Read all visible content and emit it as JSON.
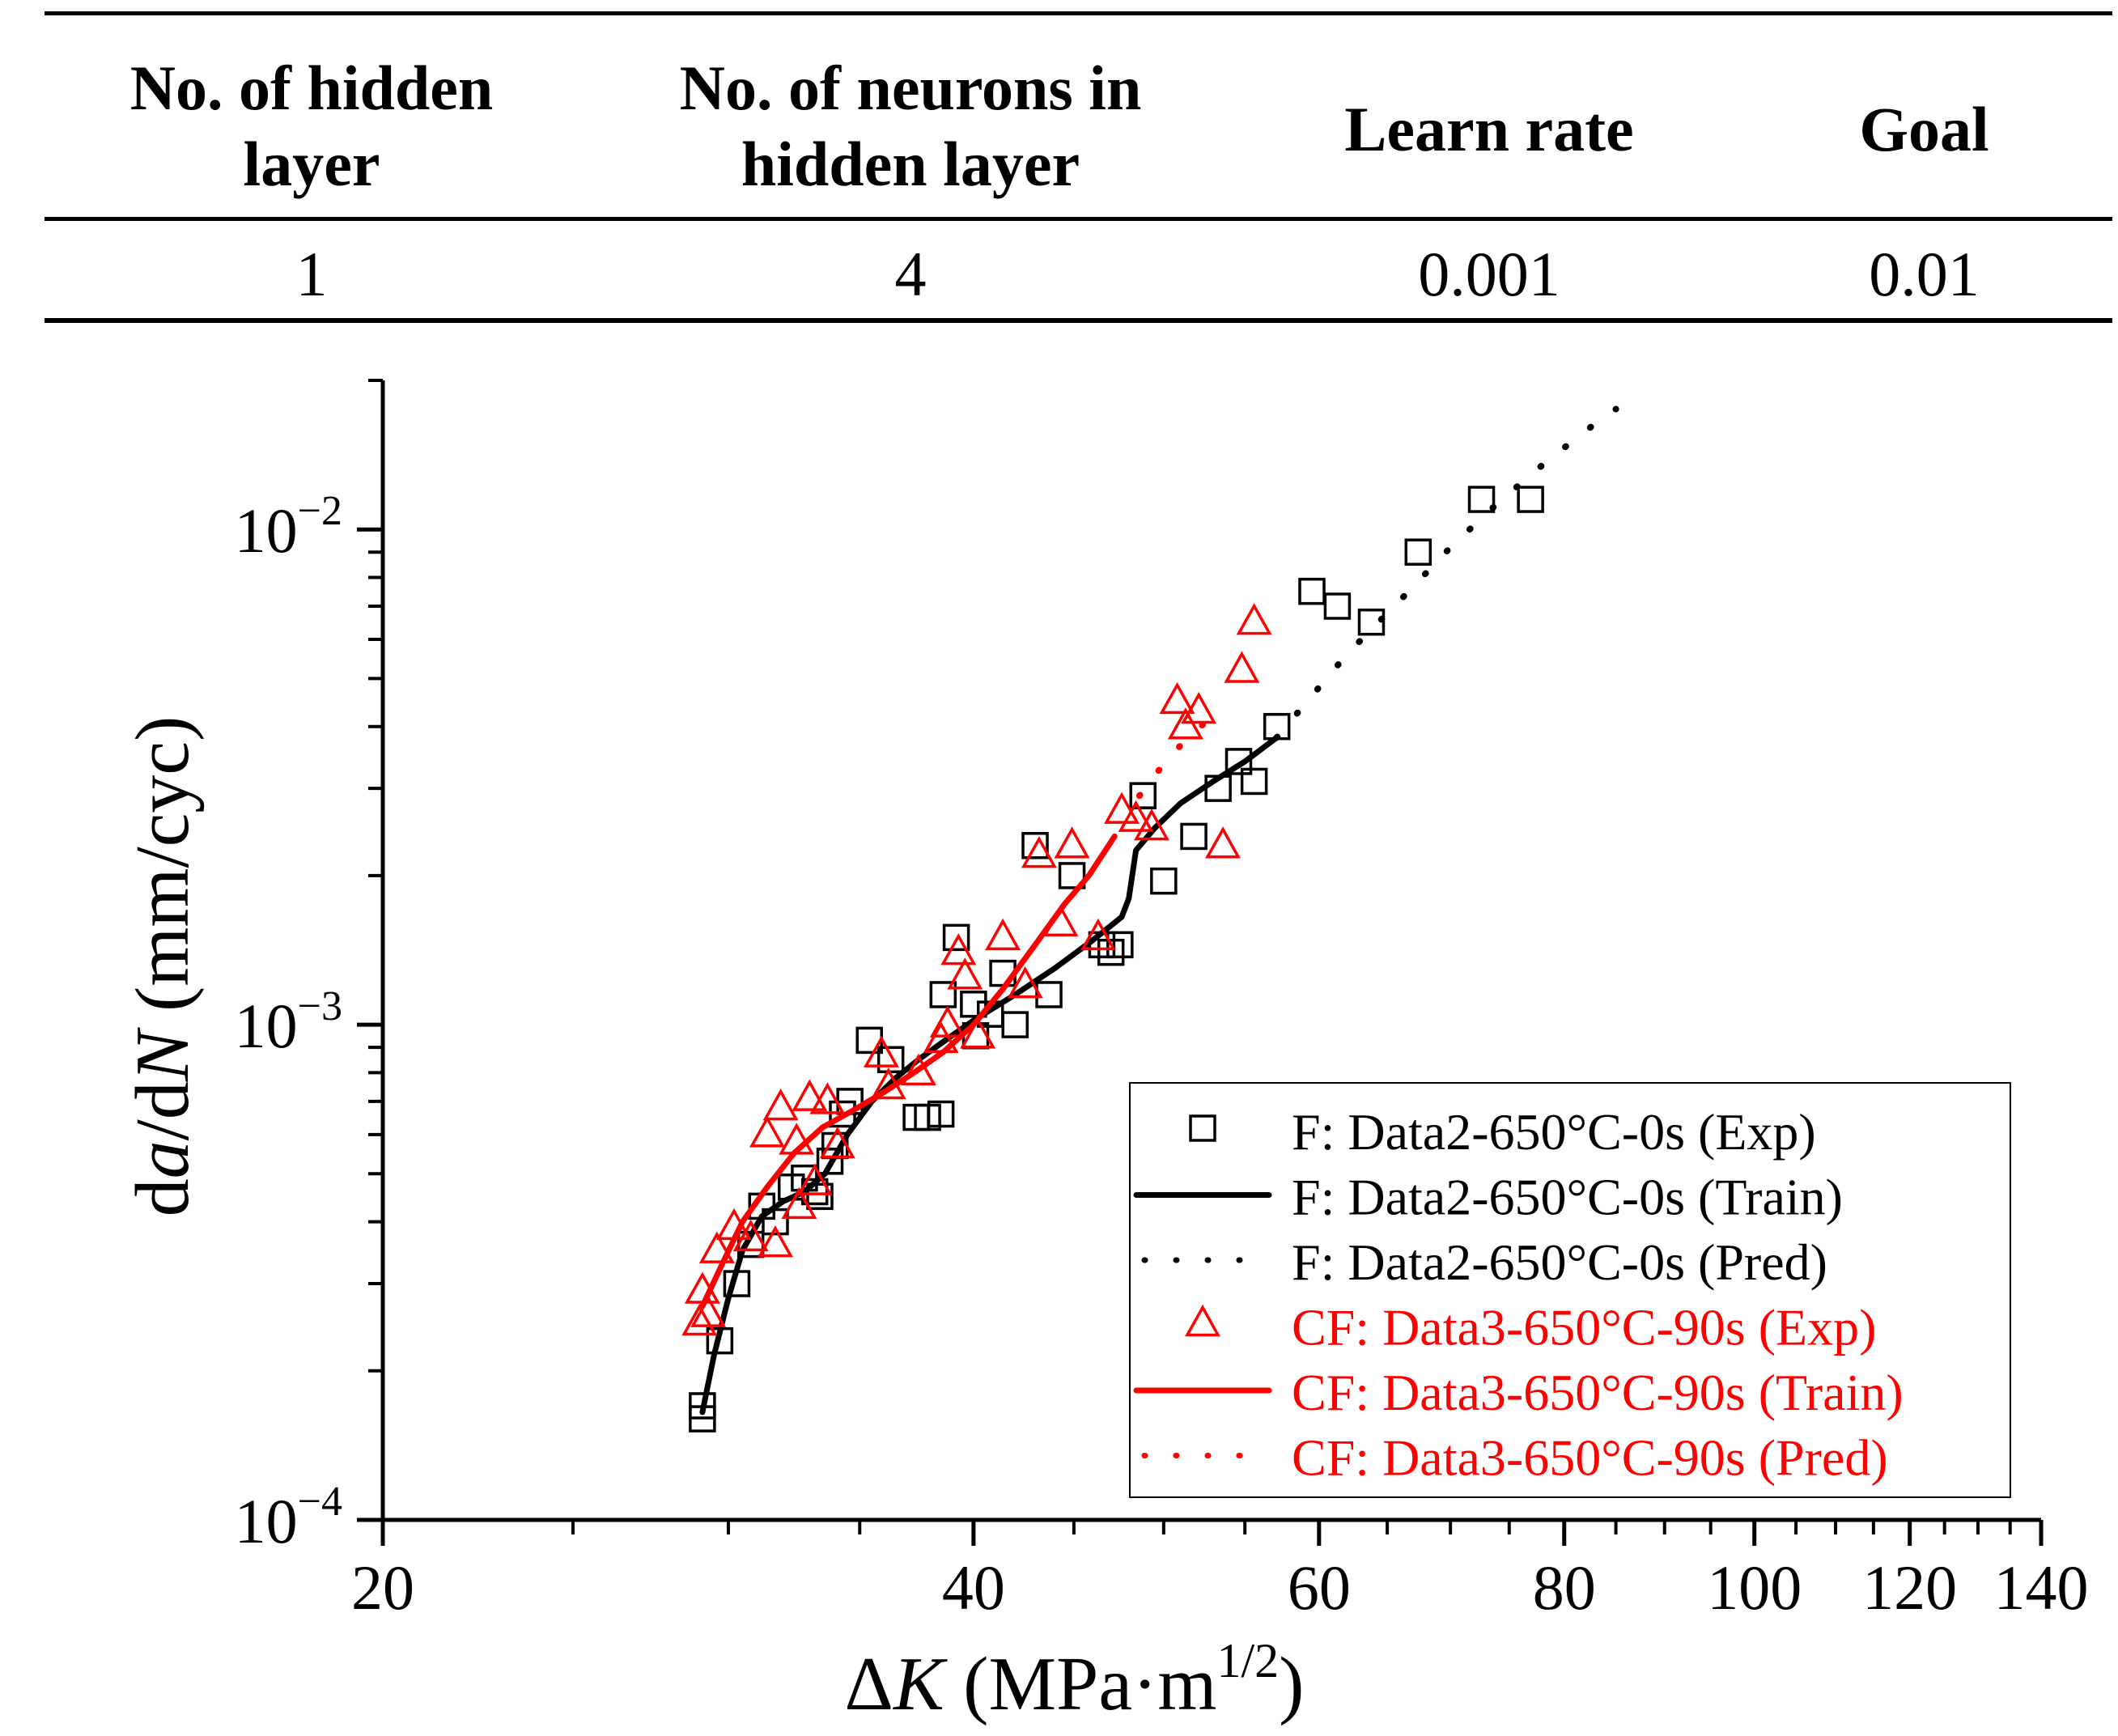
{
  "table": {
    "headers": [
      "No. of hidden\nlayer",
      "No. of neurons in\nhidden layer",
      "Learn rate",
      "Goal"
    ],
    "row": [
      "1",
      "4",
      "0.001",
      "0.01"
    ]
  },
  "colors": {
    "black_series": "#000000",
    "red_series": "#ff0000",
    "axis": "#000000"
  },
  "chart_data": {
    "type": "scatter",
    "xscale": "log",
    "yscale": "log",
    "xlim": [
      20,
      140
    ],
    "ylim": [
      0.0001,
      0.02
    ],
    "xticks": [
      20,
      40,
      60,
      80,
      100,
      120,
      140
    ],
    "xtick_labels": [
      "20",
      "40",
      "60",
      "80",
      "100",
      "120",
      "140"
    ],
    "yticks": [
      0.0001,
      0.001,
      0.01
    ],
    "ytick_base": [
      "10",
      "10",
      "10"
    ],
    "ytick_exp": [
      "−4",
      "−3",
      "−2"
    ],
    "xlabel": {
      "prefix": "Δ",
      "var": "K",
      "unit": " (MPa·m",
      "sup": "1/2",
      "close": ")"
    },
    "ylabel": {
      "d1": "d",
      "var1": "a",
      "mid": "/d",
      "var2": "N",
      "unit": " (mm/cyc)"
    },
    "legend_position": "bottom-right",
    "series": [
      {
        "name": "F: Data2-650°C-0s (Exp)",
        "style": "square",
        "color": "#000000",
        "points": [
          [
            29.1,
            0.00016
          ],
          [
            29.1,
            0.00017
          ],
          [
            29.7,
            0.00023
          ],
          [
            30.3,
            0.0003
          ],
          [
            30.8,
            0.00036
          ],
          [
            31.2,
            0.00043
          ],
          [
            31.7,
            0.0004
          ],
          [
            32.3,
            0.00047
          ],
          [
            32.8,
            0.00049
          ],
          [
            33.2,
            0.00046
          ],
          [
            33.4,
            0.00045
          ],
          [
            33.8,
            0.00053
          ],
          [
            34.0,
            0.00057
          ],
          [
            34.3,
            0.00066
          ],
          [
            34.6,
            0.0007
          ],
          [
            35.4,
            0.00093
          ],
          [
            36.3,
            0.00085
          ],
          [
            37.4,
            0.00065
          ],
          [
            37.9,
            0.00065
          ],
          [
            38.5,
            0.00066
          ],
          [
            38.6,
            0.00115
          ],
          [
            39.2,
            0.0015
          ],
          [
            40.0,
            0.0011
          ],
          [
            40.1,
            0.00095
          ],
          [
            40.8,
            0.00105
          ],
          [
            41.4,
            0.00127
          ],
          [
            42.0,
            0.001
          ],
          [
            43.0,
            0.0023
          ],
          [
            43.7,
            0.00115
          ],
          [
            44.9,
            0.002
          ],
          [
            46.5,
            0.00145
          ],
          [
            47.0,
            0.0014
          ],
          [
            47.5,
            0.00145
          ],
          [
            48.8,
            0.0029
          ],
          [
            50.0,
            0.00195
          ],
          [
            51.8,
            0.0024
          ],
          [
            53.3,
            0.003
          ],
          [
            54.6,
            0.0034
          ],
          [
            55.6,
            0.0031
          ],
          [
            57.1,
            0.004
          ],
          [
            59.5,
            0.0075
          ],
          [
            61.3,
            0.007
          ],
          [
            63.8,
            0.0065
          ],
          [
            67.4,
            0.009
          ],
          [
            72.6,
            0.0115
          ],
          [
            76.9,
            0.0115
          ]
        ]
      },
      {
        "name": "F: Data2-650°C-0s (Train)",
        "style": "solid",
        "color": "#000000",
        "points": [
          [
            29.1,
            0.000165
          ],
          [
            29.5,
            0.000215
          ],
          [
            30.0,
            0.00028
          ],
          [
            30.5,
            0.00035
          ],
          [
            31.2,
            0.00041
          ],
          [
            32.0,
            0.00044
          ],
          [
            32.8,
            0.00046
          ],
          [
            33.6,
            0.0005
          ],
          [
            34.5,
            0.0006
          ],
          [
            35.5,
            0.0007
          ],
          [
            36.5,
            0.00078
          ],
          [
            37.5,
            0.00085
          ],
          [
            38.7,
            0.00093
          ],
          [
            40.0,
            0.00102
          ],
          [
            42.0,
            0.00115
          ],
          [
            44.0,
            0.0013
          ],
          [
            46.0,
            0.00148
          ],
          [
            47.6,
            0.00165
          ],
          [
            48.0,
            0.0018
          ],
          [
            48.4,
            0.00225
          ],
          [
            49.5,
            0.0025
          ],
          [
            51.0,
            0.0028
          ],
          [
            53.0,
            0.0031
          ],
          [
            55.0,
            0.0034
          ],
          [
            57.1,
            0.0038
          ]
        ]
      },
      {
        "name": "F: Data2-650°C-0s (Pred)",
        "style": "dotted",
        "color": "#000000",
        "points": [
          [
            57.1,
            0.0038
          ],
          [
            62.0,
            0.0056
          ],
          [
            66.0,
            0.0072
          ],
          [
            70.0,
            0.0092
          ],
          [
            74.0,
            0.0113
          ],
          [
            78.0,
            0.0135
          ],
          [
            82.0,
            0.0158
          ],
          [
            85.0,
            0.0175
          ]
        ]
      },
      {
        "name": "CF: Data3-650°C-90s (Exp)",
        "style": "triangle",
        "color": "#ff0000",
        "points": [
          [
            29.0,
            0.00025
          ],
          [
            29.1,
            0.00029
          ],
          [
            29.3,
            0.00026
          ],
          [
            29.6,
            0.00035
          ],
          [
            30.2,
            0.00039
          ],
          [
            30.8,
            0.00037
          ],
          [
            31.7,
            0.00036
          ],
          [
            31.4,
            0.0006
          ],
          [
            31.9,
            0.00068
          ],
          [
            32.5,
            0.00058
          ],
          [
            33.0,
            0.00071
          ],
          [
            33.7,
            0.0007
          ],
          [
            34.1,
            0.00057
          ],
          [
            32.6,
            0.00043
          ],
          [
            33.2,
            0.00048
          ],
          [
            35.9,
            0.00087
          ],
          [
            36.2,
            0.00075
          ],
          [
            37.5,
            0.0008
          ],
          [
            38.5,
            0.00093
          ],
          [
            38.8,
            0.001
          ],
          [
            39.3,
            0.0014
          ],
          [
            39.6,
            0.00125
          ],
          [
            40.2,
            0.00095
          ],
          [
            41.4,
            0.0015
          ],
          [
            42.5,
            0.0012
          ],
          [
            43.2,
            0.0022
          ],
          [
            44.3,
            0.0016
          ],
          [
            44.9,
            0.0023
          ],
          [
            46.3,
            0.0015
          ],
          [
            47.6,
            0.0027
          ],
          [
            48.4,
            0.0026
          ],
          [
            49.3,
            0.0025
          ],
          [
            50.8,
            0.0045
          ],
          [
            51.3,
            0.004
          ],
          [
            52.1,
            0.0043
          ],
          [
            53.6,
            0.0023
          ],
          [
            54.8,
            0.0052
          ],
          [
            55.6,
            0.0065
          ]
        ]
      },
      {
        "name": "CF: Data3-650°C-90s (Train)",
        "style": "solid",
        "color": "#ff0000",
        "points": [
          [
            29.1,
            0.00027
          ],
          [
            29.8,
            0.00033
          ],
          [
            30.5,
            0.0004
          ],
          [
            31.4,
            0.00047
          ],
          [
            32.4,
            0.00055
          ],
          [
            33.5,
            0.00062
          ],
          [
            34.7,
            0.00067
          ],
          [
            36.0,
            0.00073
          ],
          [
            37.3,
            0.0008
          ],
          [
            38.6,
            0.00088
          ],
          [
            40.0,
            0.001
          ],
          [
            41.4,
            0.00118
          ],
          [
            43.0,
            0.00145
          ],
          [
            44.5,
            0.00175
          ],
          [
            45.8,
            0.002
          ],
          [
            47.2,
            0.0024
          ]
        ]
      },
      {
        "name": "CF: Data3-650°C-90s (Pred)",
        "style": "dotted",
        "color": "#ff0000",
        "points": [
          [
            48.6,
            0.0029
          ],
          [
            50.4,
            0.0035
          ],
          [
            52.2,
            0.004
          ],
          [
            53.8,
            0.0044
          ]
        ]
      }
    ]
  }
}
